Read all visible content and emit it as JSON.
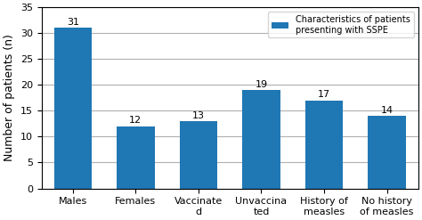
{
  "chart_data": {
    "type": "bar",
    "categories": [
      "Males",
      "Females",
      "Vaccinate\nd",
      "Unvaccina\nted",
      "History of\nmeasles",
      "No history\nof measles"
    ],
    "series": [
      {
        "name": "Characteristics of patients\npresenting with SSPE",
        "values": [
          31,
          12,
          13,
          19,
          17,
          14
        ]
      }
    ],
    "ylabel": "Number of patients (n)",
    "ylim": [
      0,
      35
    ],
    "yticks": [
      0,
      5,
      10,
      15,
      20,
      25,
      30,
      35
    ],
    "grid": true,
    "legend": "upper right",
    "data_labels": true
  }
}
